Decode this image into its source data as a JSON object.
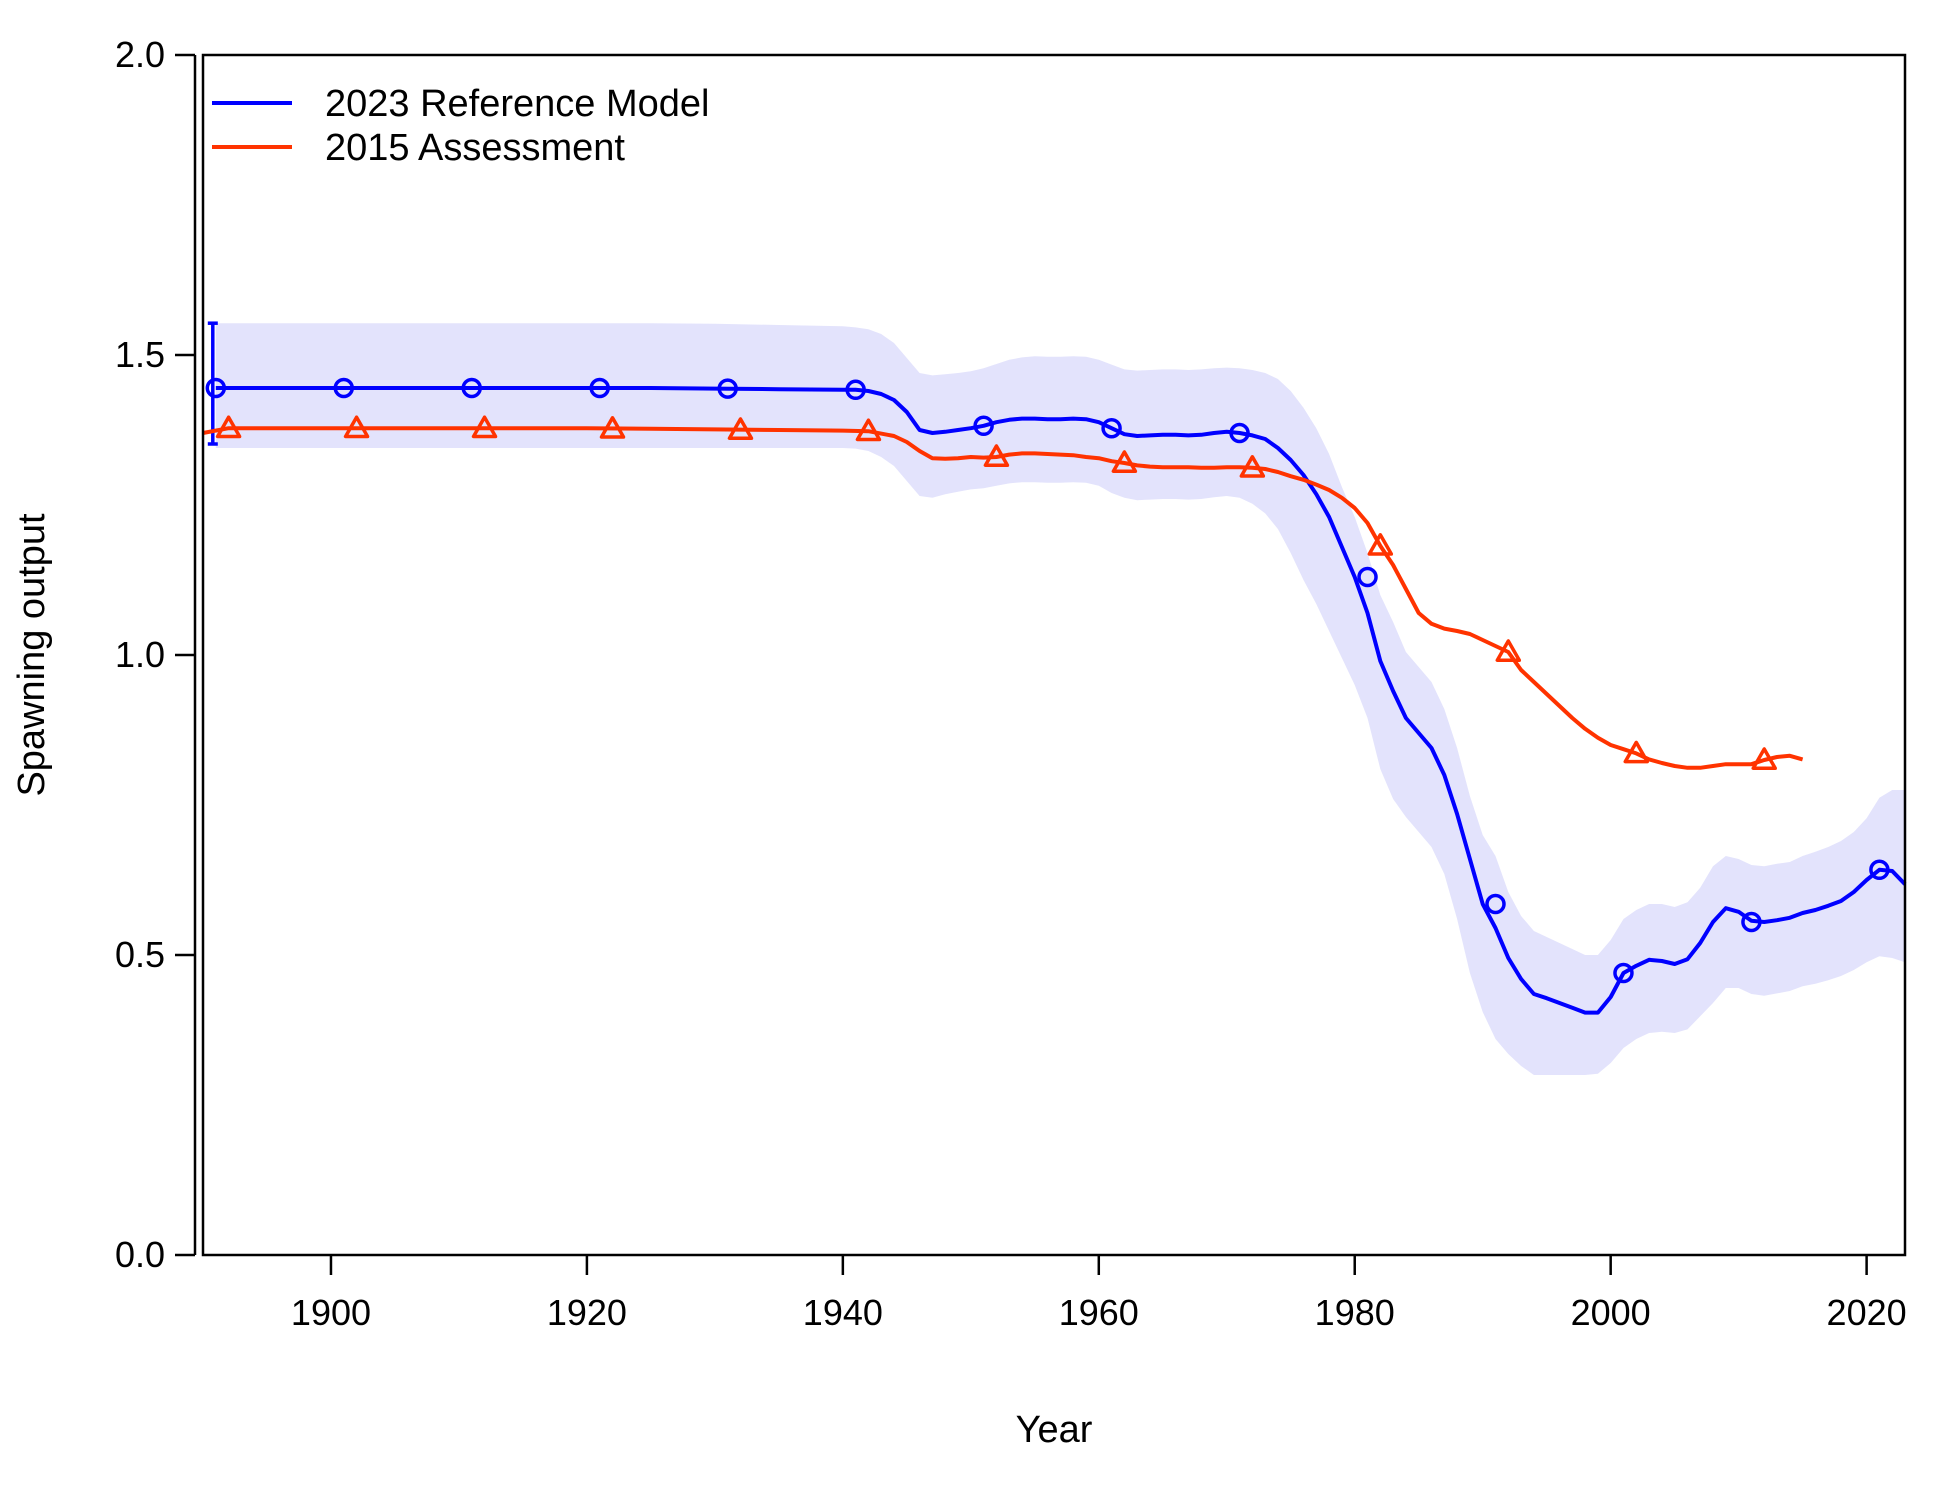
{
  "chart_data": {
    "type": "line",
    "title": "",
    "xlabel": "Year",
    "ylabel": "Spawning output",
    "xlim": [
      1890,
      2023
    ],
    "ylim": [
      0,
      2.0
    ],
    "x_ticks": [
      1900,
      1920,
      1940,
      1960,
      1980,
      2000,
      2020
    ],
    "y_ticks": [
      "0.0",
      "0.5",
      "1.0",
      "1.5",
      "2.0"
    ],
    "grid": false,
    "legend": {
      "position": "top-left"
    },
    "series": [
      {
        "name": "2023 Reference Model",
        "color": "#0000ff",
        "marker": "circle",
        "x": [
          1891,
          1895,
          1900,
          1905,
          1910,
          1915,
          1920,
          1925,
          1930,
          1935,
          1940,
          1941,
          1942,
          1943,
          1944,
          1945,
          1946,
          1947,
          1948,
          1949,
          1950,
          1951,
          1952,
          1953,
          1954,
          1955,
          1956,
          1957,
          1958,
          1959,
          1960,
          1961,
          1962,
          1963,
          1964,
          1965,
          1966,
          1967,
          1968,
          1969,
          1970,
          1971,
          1972,
          1973,
          1974,
          1975,
          1976,
          1977,
          1978,
          1979,
          1980,
          1981,
          1982,
          1983,
          1984,
          1985,
          1986,
          1987,
          1988,
          1989,
          1990,
          1991,
          1992,
          1993,
          1994,
          1995,
          1996,
          1997,
          1998,
          1999,
          2000,
          2001,
          2002,
          2003,
          2004,
          2005,
          2006,
          2007,
          2008,
          2009,
          2010,
          2011,
          2012,
          2013,
          2014,
          2015,
          2016,
          2017,
          2018,
          2019,
          2020,
          2021,
          2022,
          2023
        ],
        "y": [
          1.445,
          1.445,
          1.445,
          1.445,
          1.445,
          1.445,
          1.445,
          1.445,
          1.444,
          1.443,
          1.442,
          1.442,
          1.44,
          1.435,
          1.425,
          1.405,
          1.375,
          1.37,
          1.372,
          1.375,
          1.378,
          1.382,
          1.388,
          1.392,
          1.394,
          1.394,
          1.393,
          1.393,
          1.394,
          1.393,
          1.388,
          1.378,
          1.368,
          1.365,
          1.366,
          1.367,
          1.367,
          1.366,
          1.367,
          1.37,
          1.372,
          1.37,
          1.366,
          1.36,
          1.345,
          1.325,
          1.3,
          1.268,
          1.23,
          1.18,
          1.13,
          1.07,
          0.99,
          0.94,
          0.895,
          0.87,
          0.845,
          0.8,
          0.735,
          0.66,
          0.585,
          0.545,
          0.495,
          0.46,
          0.435,
          0.428,
          0.42,
          0.412,
          0.404,
          0.404,
          0.43,
          0.47,
          0.482,
          0.492,
          0.49,
          0.485,
          0.493,
          0.52,
          0.555,
          0.578,
          0.572,
          0.557,
          0.555,
          0.558,
          0.562,
          0.57,
          0.575,
          0.582,
          0.59,
          0.605,
          0.625,
          0.642,
          0.64,
          0.618
        ],
        "marker_x": [
          1891,
          1901,
          1911,
          1921,
          1931,
          1941,
          1951,
          1961,
          1971,
          1981,
          1991,
          2001,
          2011,
          2021
        ],
        "marker_y": [
          1.445,
          1.445,
          1.445,
          1.445,
          1.444,
          1.442,
          1.382,
          1.378,
          1.37,
          1.13,
          0.585,
          0.47,
          0.555,
          0.642
        ],
        "band_lower": [
          1.345,
          1.345,
          1.345,
          1.345,
          1.345,
          1.345,
          1.345,
          1.345,
          1.345,
          1.345,
          1.345,
          1.344,
          1.34,
          1.33,
          1.315,
          1.29,
          1.265,
          1.262,
          1.268,
          1.272,
          1.276,
          1.278,
          1.282,
          1.286,
          1.288,
          1.288,
          1.287,
          1.287,
          1.288,
          1.287,
          1.282,
          1.27,
          1.262,
          1.258,
          1.259,
          1.26,
          1.26,
          1.259,
          1.26,
          1.263,
          1.265,
          1.262,
          1.252,
          1.236,
          1.21,
          1.17,
          1.125,
          1.085,
          1.04,
          0.995,
          0.95,
          0.895,
          0.81,
          0.76,
          0.73,
          0.705,
          0.68,
          0.635,
          0.56,
          0.47,
          0.405,
          0.36,
          0.335,
          0.315,
          0.3,
          0.3,
          0.3,
          0.3,
          0.3,
          0.302,
          0.32,
          0.345,
          0.36,
          0.37,
          0.372,
          0.37,
          0.376,
          0.398,
          0.42,
          0.445,
          0.445,
          0.435,
          0.432,
          0.436,
          0.44,
          0.448,
          0.452,
          0.458,
          0.465,
          0.475,
          0.488,
          0.498,
          0.495,
          0.488
        ],
        "band_upper": [
          1.553,
          1.553,
          1.553,
          1.553,
          1.553,
          1.553,
          1.553,
          1.553,
          1.552,
          1.55,
          1.548,
          1.546,
          1.543,
          1.535,
          1.52,
          1.495,
          1.47,
          1.466,
          1.468,
          1.47,
          1.473,
          1.478,
          1.485,
          1.492,
          1.496,
          1.498,
          1.497,
          1.497,
          1.498,
          1.497,
          1.492,
          1.484,
          1.476,
          1.474,
          1.475,
          1.476,
          1.476,
          1.475,
          1.476,
          1.478,
          1.479,
          1.478,
          1.475,
          1.47,
          1.46,
          1.44,
          1.412,
          1.378,
          1.335,
          1.28,
          1.23,
          1.17,
          1.1,
          1.055,
          1.005,
          0.98,
          0.955,
          0.91,
          0.845,
          0.765,
          0.7,
          0.665,
          0.605,
          0.565,
          0.54,
          0.53,
          0.52,
          0.51,
          0.5,
          0.5,
          0.525,
          0.56,
          0.575,
          0.585,
          0.585,
          0.58,
          0.588,
          0.612,
          0.648,
          0.665,
          0.66,
          0.65,
          0.648,
          0.652,
          0.655,
          0.665,
          0.672,
          0.68,
          0.69,
          0.705,
          0.728,
          0.762,
          0.775,
          0.775
        ]
      },
      {
        "name": "2015 Assessment",
        "color": "#ff3300",
        "marker": "triangle",
        "x": [
          1890,
          1892,
          1895,
          1900,
          1905,
          1910,
          1915,
          1920,
          1925,
          1930,
          1935,
          1940,
          1942,
          1944,
          1945,
          1946,
          1947,
          1948,
          1949,
          1950,
          1951,
          1952,
          1953,
          1954,
          1955,
          1956,
          1957,
          1958,
          1959,
          1960,
          1961,
          1962,
          1963,
          1964,
          1965,
          1966,
          1967,
          1968,
          1969,
          1970,
          1971,
          1972,
          1973,
          1974,
          1975,
          1976,
          1977,
          1978,
          1979,
          1980,
          1981,
          1982,
          1983,
          1984,
          1985,
          1986,
          1987,
          1988,
          1989,
          1990,
          1991,
          1992,
          1993,
          1994,
          1995,
          1996,
          1997,
          1998,
          1999,
          2000,
          2001,
          2002,
          2003,
          2004,
          2005,
          2006,
          2007,
          2008,
          2009,
          2010,
          2011,
          2012,
          2013,
          2014,
          2015
        ],
        "y": [
          1.37,
          1.378,
          1.378,
          1.378,
          1.378,
          1.378,
          1.378,
          1.378,
          1.377,
          1.376,
          1.375,
          1.374,
          1.373,
          1.365,
          1.355,
          1.34,
          1.328,
          1.327,
          1.328,
          1.33,
          1.329,
          1.33,
          1.334,
          1.336,
          1.336,
          1.335,
          1.334,
          1.333,
          1.33,
          1.328,
          1.323,
          1.32,
          1.316,
          1.314,
          1.313,
          1.313,
          1.313,
          1.312,
          1.312,
          1.313,
          1.313,
          1.312,
          1.31,
          1.305,
          1.298,
          1.292,
          1.284,
          1.275,
          1.262,
          1.245,
          1.22,
          1.182,
          1.15,
          1.11,
          1.07,
          1.052,
          1.044,
          1.04,
          1.035,
          1.025,
          1.015,
          1.005,
          0.975,
          0.955,
          0.935,
          0.915,
          0.895,
          0.877,
          0.862,
          0.85,
          0.843,
          0.836,
          0.826,
          0.82,
          0.815,
          0.812,
          0.812,
          0.815,
          0.818,
          0.818,
          0.818,
          0.825,
          0.83,
          0.832,
          0.826
        ],
        "marker_x": [
          1892,
          1902,
          1912,
          1922,
          1932,
          1942,
          1952,
          1962,
          1972,
          1982,
          1992,
          2002,
          2012
        ],
        "marker_y": [
          1.378,
          1.378,
          1.378,
          1.377,
          1.375,
          1.373,
          1.33,
          1.32,
          1.312,
          1.182,
          1.005,
          0.836,
          0.825
        ]
      }
    ]
  }
}
